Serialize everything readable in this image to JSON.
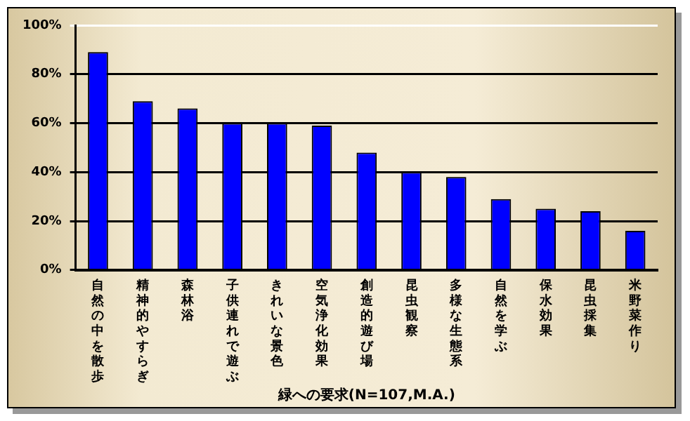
{
  "chart_data": {
    "type": "bar",
    "xlabel": "緑への要求(N=107,M.A.)",
    "categories": [
      "自然の中を散歩",
      "精神的やすらぎ",
      "森林浴",
      "子供連れで遊ぶ",
      "きれいな景色",
      "空気浄化効果",
      "創造的遊び場",
      "昆虫観察",
      "多様な生態系",
      "自然を学ぶ",
      "保水効果",
      "昆虫採集",
      "米野菜作り"
    ],
    "values": [
      89,
      69,
      66,
      60,
      60,
      59,
      48,
      40,
      38,
      29,
      25,
      24,
      16
    ],
    "color": "#0000ff",
    "ylim": [
      0,
      100
    ],
    "yticks": [
      {
        "value": 0,
        "label": "0%"
      },
      {
        "value": 20,
        "label": "20%"
      },
      {
        "value": 40,
        "label": "40%"
      },
      {
        "value": 60,
        "label": "60%"
      },
      {
        "value": 80,
        "label": "80%"
      },
      {
        "value": 100,
        "label": "100%"
      }
    ],
    "grid": "y",
    "legend": false
  }
}
